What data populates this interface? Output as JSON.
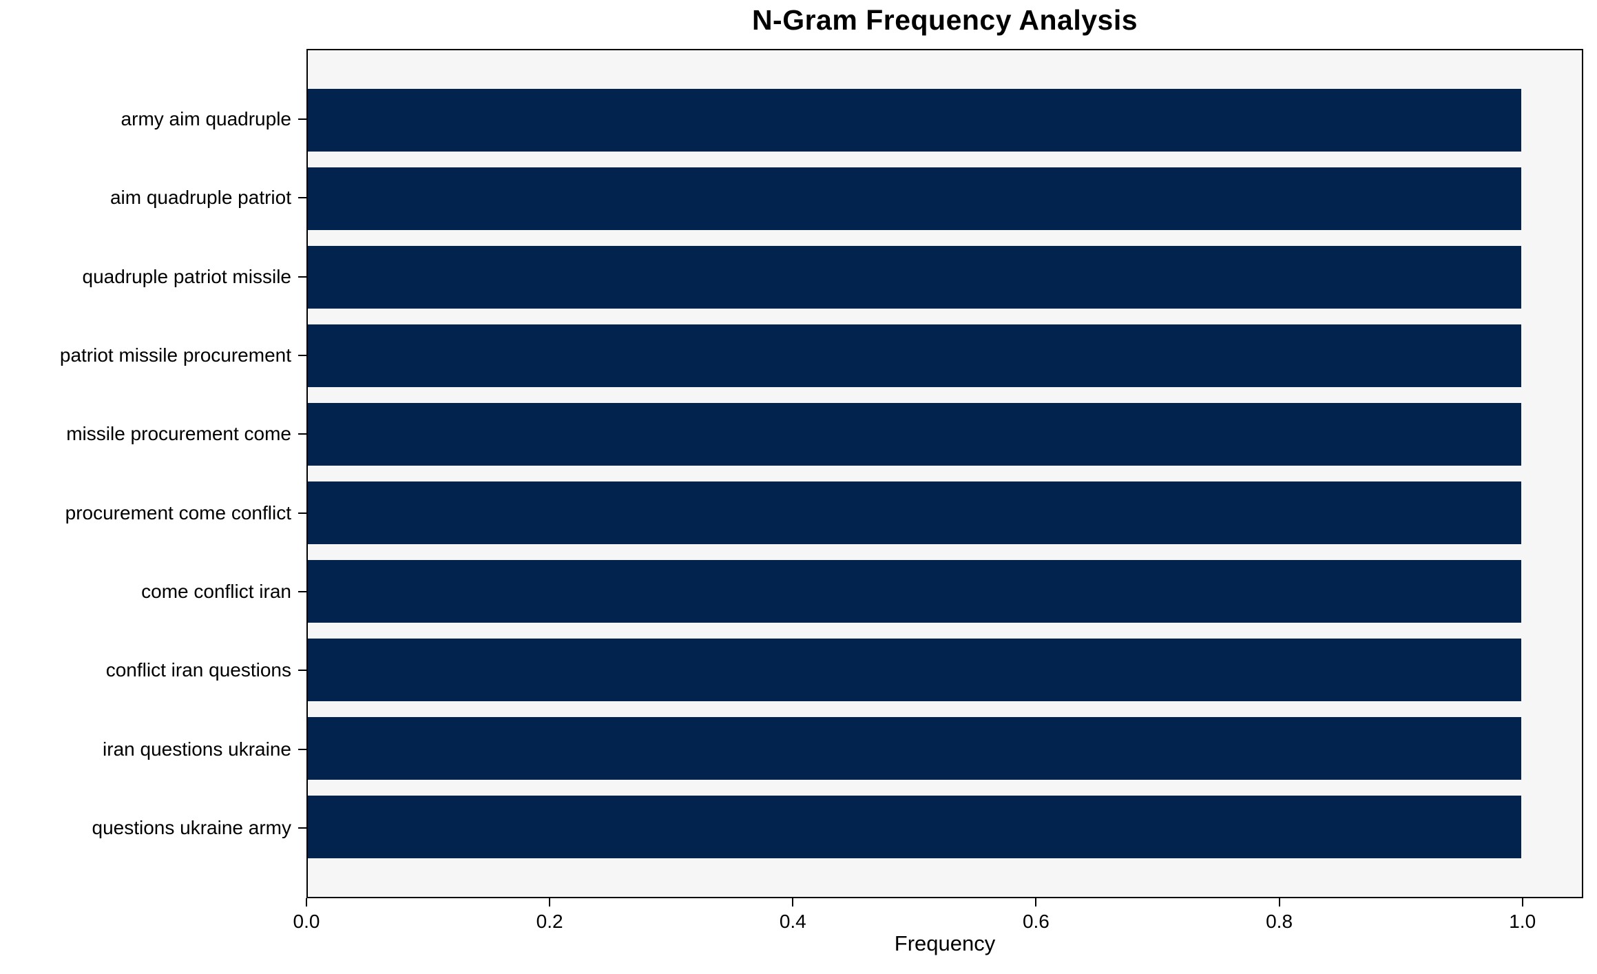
{
  "chart_data": {
    "type": "bar",
    "orientation": "horizontal",
    "title": "N-Gram Frequency Analysis",
    "xlabel": "Frequency",
    "ylabel": "",
    "categories": [
      "army aim quadruple",
      "aim quadruple patriot",
      "quadruple patriot missile",
      "patriot missile procurement",
      "missile procurement come",
      "procurement come conflict",
      "come conflict iran",
      "conflict iran questions",
      "iran questions ukraine",
      "questions ukraine army"
    ],
    "values": [
      1.0,
      1.0,
      1.0,
      1.0,
      1.0,
      1.0,
      1.0,
      1.0,
      1.0,
      1.0
    ],
    "xticks": [
      0.0,
      0.2,
      0.4,
      0.6,
      0.8,
      1.0
    ],
    "xtick_labels": [
      "0.0",
      "0.2",
      "0.4",
      "0.6",
      "0.8",
      "1.0"
    ],
    "xlim": [
      0,
      1.05
    ],
    "bar_height_fraction": 0.8,
    "grid": false,
    "legend": "none",
    "colors": {
      "bar": "#02234e",
      "plot_background": "#f6f6f6",
      "figure_background": "#ffffff",
      "spine": "#000000",
      "text": "#000000"
    }
  }
}
